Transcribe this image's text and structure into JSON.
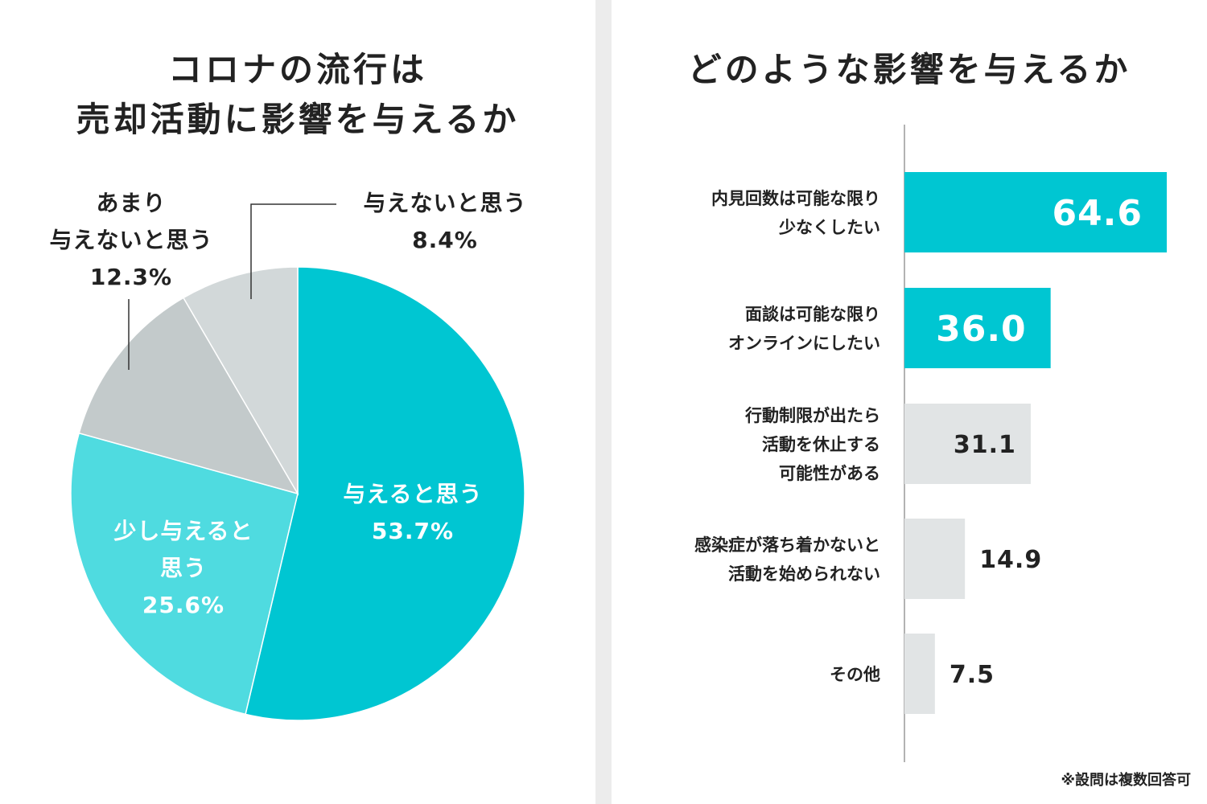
{
  "colors": {
    "teal": "#00c6d2",
    "teal_light": "#4fdbe0",
    "gray_mid": "#c3cacb",
    "gray_light": "#d2d8d9",
    "bar_gray": "#e1e4e5",
    "text": "#222222",
    "divider": "#ececec"
  },
  "chart_data": [
    {
      "type": "pie",
      "title_lines": [
        "コロナの流行は",
        "売却活動に影響を与えるか"
      ],
      "slices": [
        {
          "label_lines": [
            "与えると思う"
          ],
          "value": 53.7,
          "value_text": "53.7%"
        },
        {
          "label_lines": [
            "少し与えると",
            "思う"
          ],
          "value": 25.6,
          "value_text": "25.6%"
        },
        {
          "label_lines": [
            "あまり",
            "与えないと思う"
          ],
          "value": 12.3,
          "value_text": "12.3%"
        },
        {
          "label_lines": [
            "与えないと思う"
          ],
          "value": 8.4,
          "value_text": "8.4%"
        }
      ]
    },
    {
      "type": "bar",
      "orientation": "horizontal",
      "title": "どのような影響を与えるか",
      "xlim": [
        0,
        70
      ],
      "categories": [
        {
          "label_lines": [
            "内見回数は可能な限り",
            "少なくしたい"
          ],
          "value": 64.6,
          "value_text": "64.6",
          "highlight": true
        },
        {
          "label_lines": [
            "面談は可能な限り",
            "オンラインにしたい"
          ],
          "value": 36.0,
          "value_text": "36.0",
          "highlight": true
        },
        {
          "label_lines": [
            "行動制限が出たら",
            "活動を休止する",
            "可能性がある"
          ],
          "value": 31.1,
          "value_text": "31.1",
          "highlight": false
        },
        {
          "label_lines": [
            "感染症が落ち着かないと",
            "活動を始められない"
          ],
          "value": 14.9,
          "value_text": "14.9",
          "highlight": false
        },
        {
          "label_lines": [
            "その他"
          ],
          "value": 7.5,
          "value_text": "7.5",
          "highlight": false
        }
      ],
      "note": "※設問は複数回答可"
    }
  ]
}
